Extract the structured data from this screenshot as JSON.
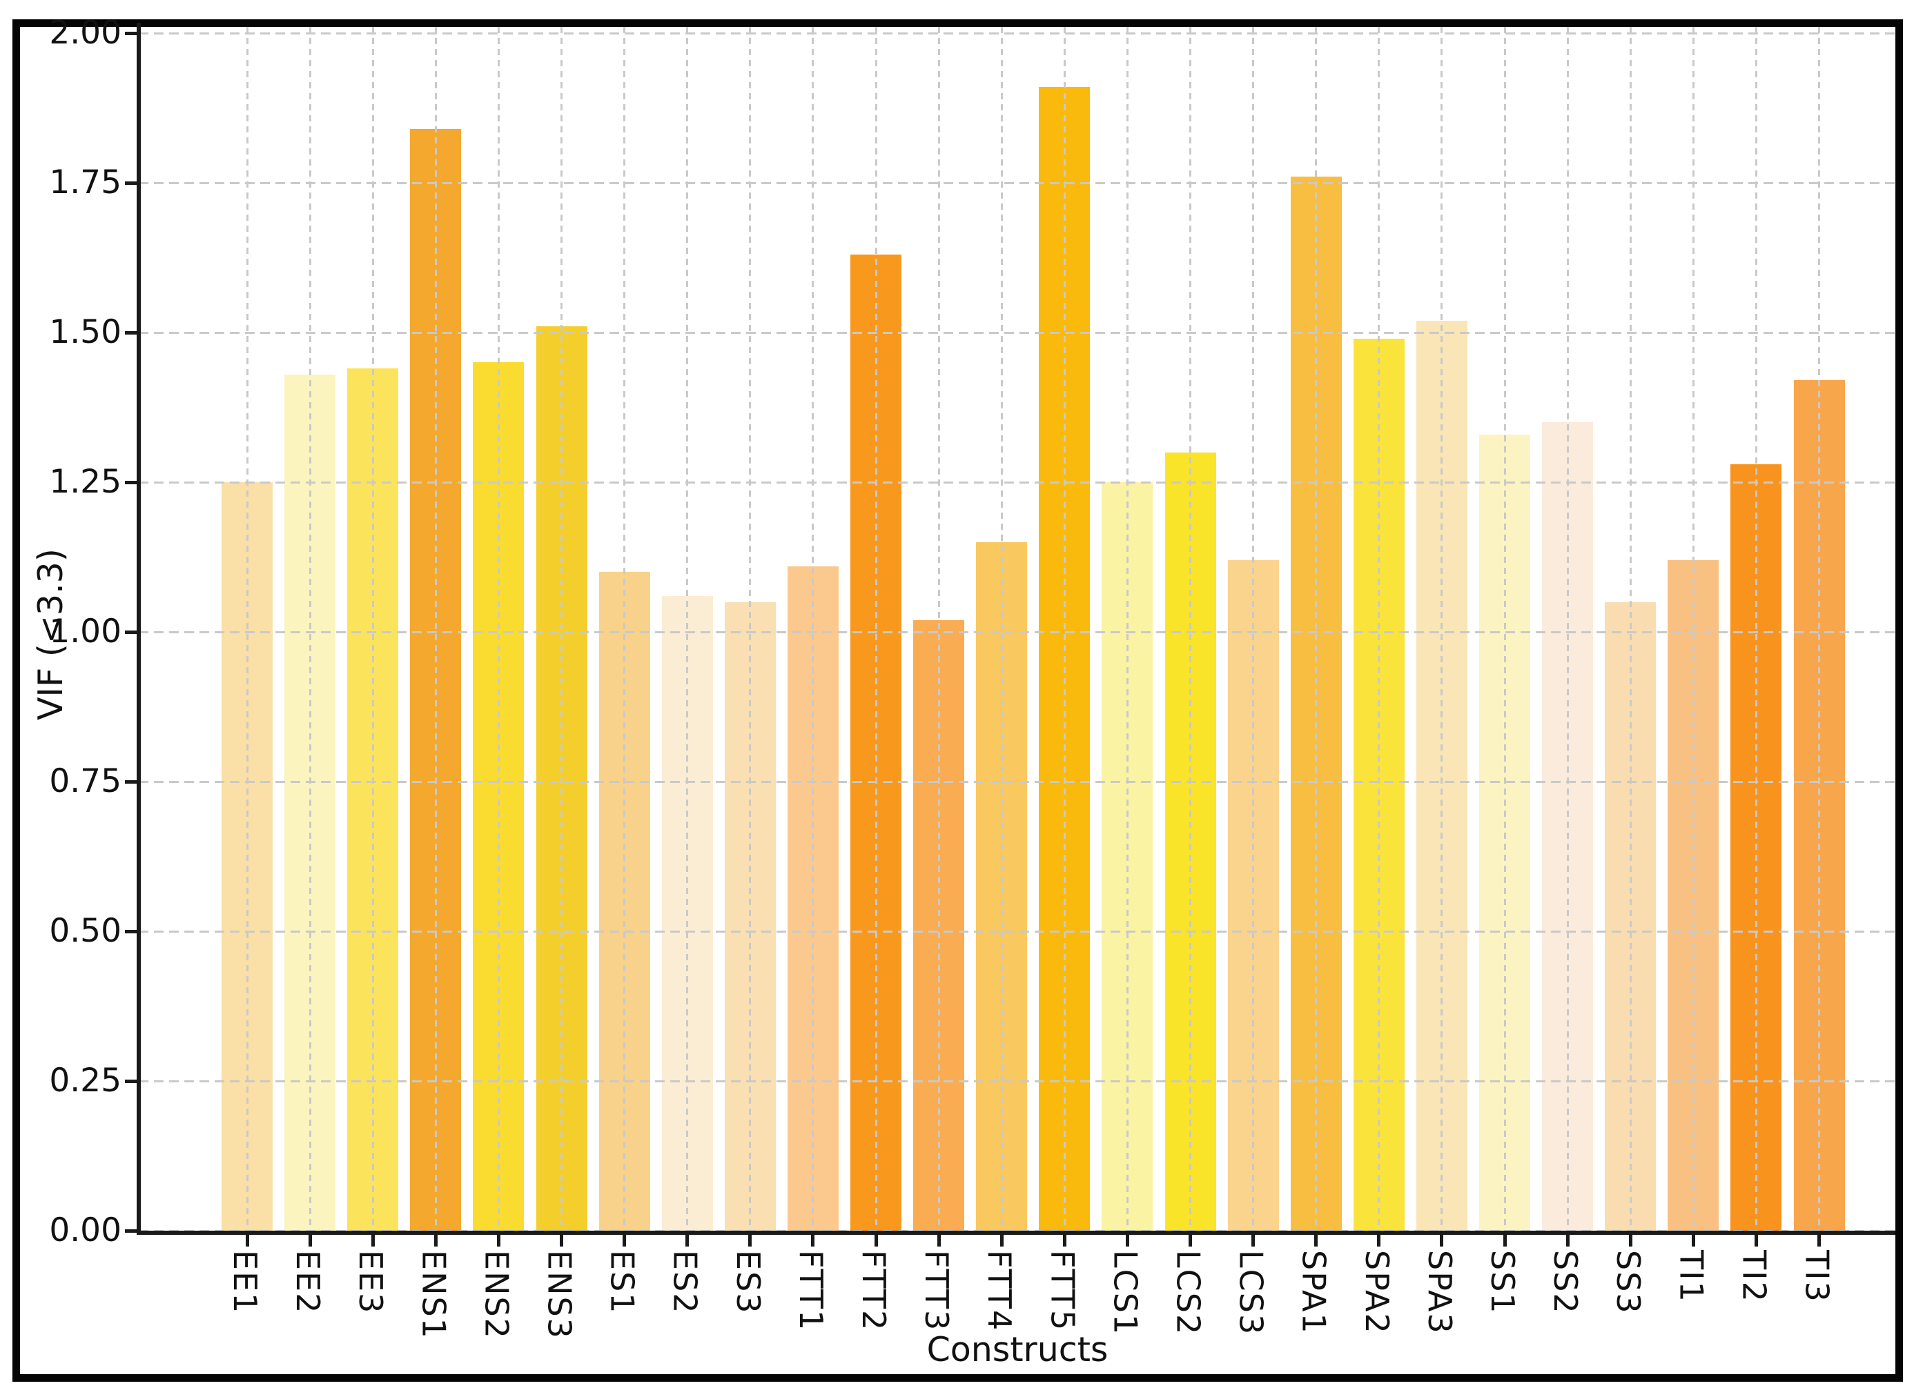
{
  "figure": {
    "background": "#ffffff",
    "border_color": "#050505",
    "grid_color": "#c9c9c9",
    "spine_color": "#1a1a1a",
    "text_color": "#111111"
  },
  "chart_data": {
    "type": "bar",
    "title": "",
    "xlabel": "Constructs",
    "ylabel": "VIF (<3.3)",
    "categories": [
      "EE1",
      "EE2",
      "EE3",
      "ENS1",
      "ENS2",
      "ENS3",
      "ES1",
      "ES2",
      "ES3",
      "FTT1",
      "FTT2",
      "FTT3",
      "FTT4",
      "FTT5",
      "LCS1",
      "LCS2",
      "LCS3",
      "SPA1",
      "SPA2",
      "SPA3",
      "SS1",
      "SS2",
      "SS3",
      "TI1",
      "TI2",
      "TI3"
    ],
    "values": [
      1.25,
      1.43,
      1.44,
      1.84,
      1.45,
      1.51,
      1.1,
      1.06,
      1.05,
      1.11,
      1.63,
      1.02,
      1.15,
      1.91,
      1.25,
      1.3,
      1.12,
      1.76,
      1.49,
      1.52,
      1.33,
      1.35,
      1.05,
      1.12,
      1.28,
      1.42
    ],
    "bar_colors": [
      "#FADFA6",
      "#FCF4BE",
      "#FBE45C",
      "#F4A82D",
      "#FADC30",
      "#F4CF2C",
      "#F8D28A",
      "#FBEDD4",
      "#F9DFB2",
      "#FBC98E",
      "#F8991E",
      "#F9AC52",
      "#F9C85F",
      "#F9B90D",
      "#FBF3A4",
      "#F9E42A",
      "#FAD48D",
      "#F8BE42",
      "#FAE43C",
      "#FAE5B6",
      "#FCF3C2",
      "#FAEBDC",
      "#F9DDB0",
      "#F9C181",
      "#F8941E",
      "#F8A64C"
    ],
    "yticks": [
      "0.00",
      "0.25",
      "0.50",
      "0.75",
      "1.00",
      "1.25",
      "1.50",
      "1.75",
      "2.00"
    ],
    "ylim": [
      0.0,
      2.0
    ],
    "grid": "dashed-both-axes-above-bars",
    "legend": "none"
  }
}
